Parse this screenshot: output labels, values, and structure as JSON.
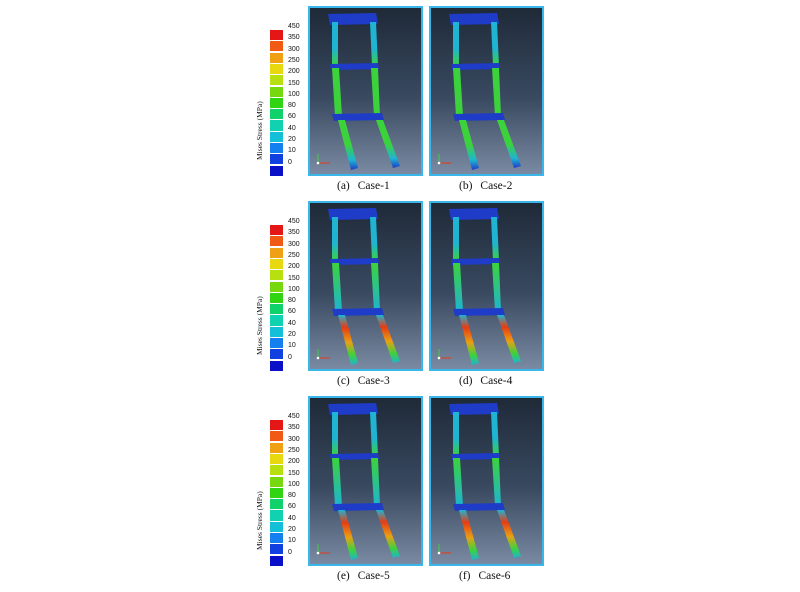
{
  "legend": {
    "title": "Mises Stress (MPa)",
    "ticks": [
      "450",
      "350",
      "300",
      "250",
      "200",
      "150",
      "100",
      "80",
      "60",
      "40",
      "20",
      "10",
      "0"
    ],
    "colors": [
      "#e51616",
      "#f05a14",
      "#f0a014",
      "#e8d810",
      "#b8e010",
      "#78d810",
      "#30d410",
      "#10d26a",
      "#10d2b0",
      "#14c0d8",
      "#1480f0",
      "#1040e0",
      "#0a10c8"
    ]
  },
  "rows": [
    {
      "panels": [
        {
          "label": "(a)",
          "name": "Case-1",
          "variant": "upper"
        },
        {
          "label": "(b)",
          "name": "Case-2",
          "variant": "upper"
        }
      ]
    },
    {
      "panels": [
        {
          "label": "(c)",
          "name": "Case-3",
          "variant": "lower"
        },
        {
          "label": "(d)",
          "name": "Case-4",
          "variant": "lower"
        }
      ]
    },
    {
      "panels": [
        {
          "label": "(e)",
          "name": "Case-5",
          "variant": "lower"
        },
        {
          "label": "(f)",
          "name": "Case-6",
          "variant": "lower"
        }
      ]
    }
  ],
  "colors": {
    "panel_border": "#3ab7ea",
    "frame_blue": "#1e3cc8",
    "frame_cyan": "#1eb4d2",
    "frame_green": "#3cd23c",
    "frame_red": "#e63c14"
  }
}
